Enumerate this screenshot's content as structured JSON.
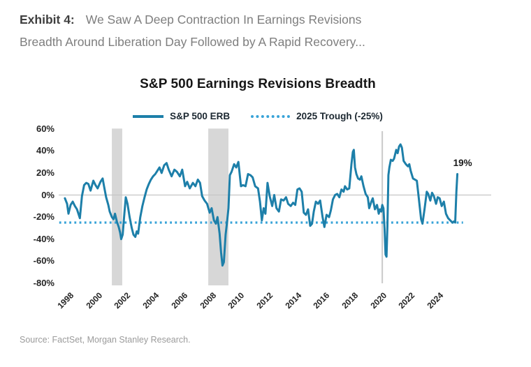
{
  "header": {
    "exhibit_label": "Exhibit 4:",
    "line1": "We Saw A Deep Contraction In Earnings Revisions",
    "line2": "Breadth Around Liberation Day Followed by A Rapid Recovery..."
  },
  "source_note": "Source: FactSet, Morgan Stanley Research.",
  "chart_data": {
    "type": "line",
    "title": "S&P 500 Earnings Revisions Breadth",
    "legend": [
      {
        "label": "S&P 500 ERB",
        "style": "solid",
        "color": "#1d7fa9"
      },
      {
        "label": "2025 Trough (-25%)",
        "style": "dotted",
        "color": "#38a3d8"
      }
    ],
    "xlabel": "",
    "ylabel": "",
    "ylim": [
      -80,
      60
    ],
    "x_range": [
      1997.4,
      2025.8
    ],
    "grid": "zero-line-only",
    "legend_position": "top-center",
    "y_ticks": [
      "60%",
      "40%",
      "20%",
      "0%",
      "-20%",
      "-40%",
      "-60%",
      "-80%"
    ],
    "y_tick_values": [
      60,
      40,
      20,
      0,
      -20,
      -40,
      -60,
      -80
    ],
    "x_ticks": [
      "1998",
      "2000",
      "2002",
      "2004",
      "2006",
      "2008",
      "2010",
      "2012",
      "2014",
      "2016",
      "2018",
      "2020",
      "2022",
      "2024"
    ],
    "x_tick_values": [
      1998,
      2000,
      2002,
      2004,
      2006,
      2008,
      2010,
      2012,
      2014,
      2016,
      2018,
      2020,
      2022,
      2024
    ],
    "trough_line_value": -25,
    "end_label": "19%",
    "end_value": 19,
    "recession_bands": [
      [
        2001.1,
        2001.83
      ],
      [
        2007.88,
        2009.3
      ]
    ],
    "event_line_year": 2020.12,
    "colors": {
      "series": "#1d7fa9",
      "trough_line": "#38a3d8",
      "recession_band": "#d7d7d7",
      "event_line": "#c9c9c9",
      "zero_line": "#c5c5c5"
    },
    "series": [
      {
        "name": "S&P 500 ERB",
        "points": [
          [
            1997.8,
            -3
          ],
          [
            1997.95,
            -8
          ],
          [
            1998.05,
            -17
          ],
          [
            1998.2,
            -9
          ],
          [
            1998.35,
            -6
          ],
          [
            1998.5,
            -10
          ],
          [
            1998.65,
            -13
          ],
          [
            1998.85,
            -21
          ],
          [
            1999.0,
            -1
          ],
          [
            1999.15,
            9
          ],
          [
            1999.3,
            11
          ],
          [
            1999.45,
            10
          ],
          [
            1999.6,
            4
          ],
          [
            1999.8,
            13
          ],
          [
            1999.95,
            9
          ],
          [
            2000.1,
            6
          ],
          [
            2000.3,
            12
          ],
          [
            2000.45,
            15
          ],
          [
            2000.55,
            8
          ],
          [
            2000.7,
            -2
          ],
          [
            2000.85,
            -9
          ],
          [
            2000.95,
            -15
          ],
          [
            2001.1,
            -20
          ],
          [
            2001.22,
            -22
          ],
          [
            2001.32,
            -17
          ],
          [
            2001.45,
            -24
          ],
          [
            2001.58,
            -29
          ],
          [
            2001.68,
            -34
          ],
          [
            2001.76,
            -40
          ],
          [
            2001.86,
            -36
          ],
          [
            2001.96,
            -20
          ],
          [
            2002.08,
            -2
          ],
          [
            2002.2,
            -8
          ],
          [
            2002.35,
            -20
          ],
          [
            2002.5,
            -30
          ],
          [
            2002.62,
            -36
          ],
          [
            2002.75,
            -38
          ],
          [
            2002.85,
            -33
          ],
          [
            2002.95,
            -35
          ],
          [
            2003.1,
            -20
          ],
          [
            2003.25,
            -10
          ],
          [
            2003.4,
            -2
          ],
          [
            2003.55,
            5
          ],
          [
            2003.7,
            10
          ],
          [
            2003.85,
            14
          ],
          [
            2004.0,
            17
          ],
          [
            2004.15,
            19
          ],
          [
            2004.3,
            22
          ],
          [
            2004.45,
            25
          ],
          [
            2004.6,
            20
          ],
          [
            2004.78,
            27
          ],
          [
            2004.95,
            29
          ],
          [
            2005.1,
            23
          ],
          [
            2005.3,
            17
          ],
          [
            2005.5,
            23
          ],
          [
            2005.68,
            21
          ],
          [
            2005.88,
            17
          ],
          [
            2006.05,
            23
          ],
          [
            2006.25,
            8
          ],
          [
            2006.4,
            12
          ],
          [
            2006.58,
            6
          ],
          [
            2006.8,
            11
          ],
          [
            2006.98,
            8
          ],
          [
            2007.15,
            14
          ],
          [
            2007.3,
            11
          ],
          [
            2007.45,
            -1
          ],
          [
            2007.62,
            -5
          ],
          [
            2007.8,
            -8
          ],
          [
            2007.98,
            -16
          ],
          [
            2008.12,
            -12
          ],
          [
            2008.28,
            -23
          ],
          [
            2008.42,
            -26
          ],
          [
            2008.53,
            -20
          ],
          [
            2008.68,
            -35
          ],
          [
            2008.78,
            -52
          ],
          [
            2008.88,
            -64
          ],
          [
            2008.98,
            -61
          ],
          [
            2009.1,
            -36
          ],
          [
            2009.2,
            -25
          ],
          [
            2009.3,
            -12
          ],
          [
            2009.4,
            18
          ],
          [
            2009.52,
            21
          ],
          [
            2009.7,
            28
          ],
          [
            2009.85,
            25
          ],
          [
            2010.0,
            30
          ],
          [
            2010.18,
            8
          ],
          [
            2010.32,
            9
          ],
          [
            2010.5,
            8
          ],
          [
            2010.68,
            19
          ],
          [
            2010.85,
            18
          ],
          [
            2011.0,
            16
          ],
          [
            2011.18,
            8
          ],
          [
            2011.38,
            6
          ],
          [
            2011.52,
            -6
          ],
          [
            2011.65,
            -23
          ],
          [
            2011.78,
            -12
          ],
          [
            2011.9,
            -17
          ],
          [
            2012.05,
            11
          ],
          [
            2012.2,
            -1
          ],
          [
            2012.38,
            -10
          ],
          [
            2012.52,
            0
          ],
          [
            2012.68,
            -12
          ],
          [
            2012.85,
            -15
          ],
          [
            2013.0,
            -4
          ],
          [
            2013.18,
            -5
          ],
          [
            2013.35,
            -2
          ],
          [
            2013.5,
            -8
          ],
          [
            2013.68,
            -10
          ],
          [
            2013.85,
            -7
          ],
          [
            2014.0,
            -9
          ],
          [
            2014.15,
            5
          ],
          [
            2014.3,
            6
          ],
          [
            2014.45,
            3
          ],
          [
            2014.6,
            -16
          ],
          [
            2014.75,
            -18
          ],
          [
            2014.9,
            -13
          ],
          [
            2015.05,
            -28
          ],
          [
            2015.18,
            -26
          ],
          [
            2015.3,
            -15
          ],
          [
            2015.45,
            -6
          ],
          [
            2015.6,
            -8
          ],
          [
            2015.75,
            -5
          ],
          [
            2015.92,
            -20
          ],
          [
            2016.05,
            -29
          ],
          [
            2016.2,
            -18
          ],
          [
            2016.38,
            -20
          ],
          [
            2016.5,
            -14
          ],
          [
            2016.65,
            -4
          ],
          [
            2016.8,
            0
          ],
          [
            2016.95,
            1
          ],
          [
            2017.1,
            -2
          ],
          [
            2017.25,
            5
          ],
          [
            2017.4,
            3
          ],
          [
            2017.5,
            8
          ],
          [
            2017.65,
            5
          ],
          [
            2017.8,
            6
          ],
          [
            2017.95,
            28
          ],
          [
            2018.05,
            39
          ],
          [
            2018.12,
            41
          ],
          [
            2018.2,
            25
          ],
          [
            2018.3,
            19
          ],
          [
            2018.42,
            15
          ],
          [
            2018.55,
            14
          ],
          [
            2018.65,
            17
          ],
          [
            2018.8,
            8
          ],
          [
            2018.95,
            1
          ],
          [
            2019.1,
            -2
          ],
          [
            2019.2,
            -12
          ],
          [
            2019.35,
            -6
          ],
          [
            2019.45,
            -3
          ],
          [
            2019.6,
            -13
          ],
          [
            2019.75,
            -9
          ],
          [
            2019.87,
            -17
          ],
          [
            2019.95,
            -13
          ],
          [
            2020.05,
            -15
          ],
          [
            2020.12,
            -9
          ],
          [
            2020.2,
            -12
          ],
          [
            2020.28,
            -30
          ],
          [
            2020.35,
            -54
          ],
          [
            2020.42,
            -56
          ],
          [
            2020.48,
            -28
          ],
          [
            2020.55,
            18
          ],
          [
            2020.62,
            25
          ],
          [
            2020.72,
            32
          ],
          [
            2020.85,
            31
          ],
          [
            2020.95,
            33
          ],
          [
            2021.1,
            41
          ],
          [
            2021.2,
            38
          ],
          [
            2021.3,
            44
          ],
          [
            2021.4,
            46
          ],
          [
            2021.5,
            43
          ],
          [
            2021.62,
            31
          ],
          [
            2021.78,
            28
          ],
          [
            2021.92,
            26
          ],
          [
            2022.02,
            28
          ],
          [
            2022.12,
            22
          ],
          [
            2022.28,
            15
          ],
          [
            2022.42,
            14
          ],
          [
            2022.55,
            13
          ],
          [
            2022.7,
            -4
          ],
          [
            2022.85,
            -22
          ],
          [
            2022.95,
            -26
          ],
          [
            2023.1,
            -12
          ],
          [
            2023.25,
            3
          ],
          [
            2023.35,
            1
          ],
          [
            2023.5,
            -5
          ],
          [
            2023.62,
            2
          ],
          [
            2023.75,
            -1
          ],
          [
            2023.9,
            -8
          ],
          [
            2024.02,
            -2
          ],
          [
            2024.15,
            -3
          ],
          [
            2024.3,
            -10
          ],
          [
            2024.45,
            -6
          ],
          [
            2024.6,
            -17
          ],
          [
            2024.75,
            -21
          ],
          [
            2024.9,
            -23
          ],
          [
            2025.05,
            -25
          ],
          [
            2025.15,
            -24
          ],
          [
            2025.25,
            -25
          ],
          [
            2025.33,
            3
          ],
          [
            2025.4,
            19
          ]
        ]
      }
    ]
  }
}
